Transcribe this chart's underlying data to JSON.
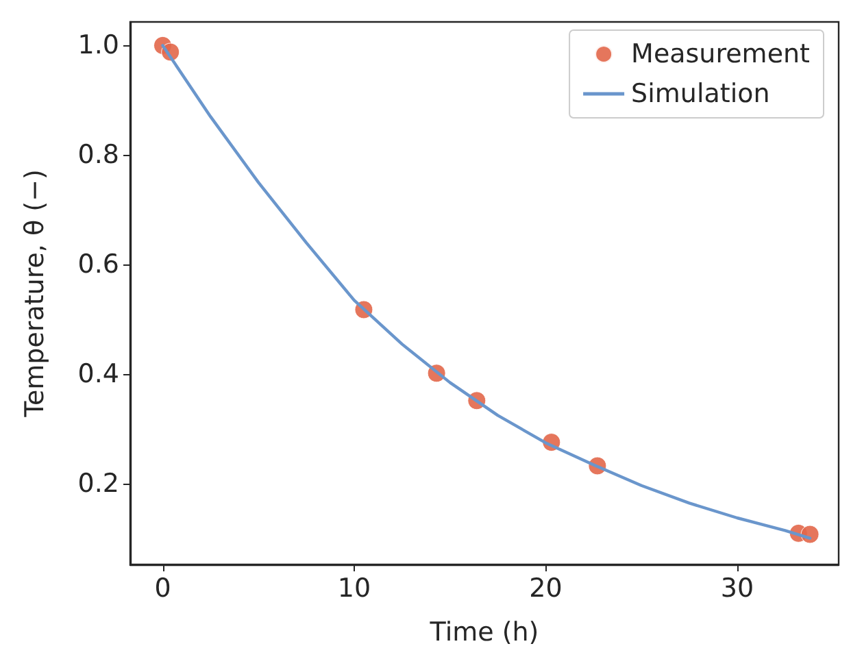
{
  "chart_data": {
    "type": "scatter",
    "xlabel": "Time (h)",
    "ylabel": "Temperature, θ (−)",
    "xlim": [
      -1.7,
      35.3
    ],
    "xticks": [
      0,
      10,
      20,
      30
    ],
    "ylim": [
      0.053,
      1.043
    ],
    "yticks": [
      {
        "value": 0.2,
        "label": "0.2"
      },
      {
        "value": 0.4,
        "label": "0.4"
      },
      {
        "value": 0.6,
        "label": "0.6"
      },
      {
        "value": 0.8,
        "label": "0.8"
      },
      {
        "value": 1,
        "label": "1.0"
      }
    ],
    "grid": false,
    "legend": "top right",
    "series": [
      {
        "name": "Measurement",
        "marker": "circle",
        "color": "#e2674a",
        "x": [
          0,
          0.4,
          10.5,
          14.3,
          16.4,
          20.3,
          22.7,
          33.2,
          33.8
        ],
        "values": [
          1.0,
          0.988,
          0.518,
          0.402,
          0.352,
          0.276,
          0.233,
          0.11,
          0.108
        ]
      },
      {
        "name": "Simulation",
        "type": "line",
        "marker": "none",
        "line_style": "solid",
        "color": "#6a96cc",
        "x": [
          0,
          2.5,
          5,
          7.5,
          10,
          12.5,
          15,
          17.5,
          20,
          22.5,
          25,
          27.5,
          30,
          32.5,
          33.8
        ],
        "values": [
          1.0,
          0.87,
          0.75,
          0.64,
          0.535,
          0.455,
          0.385,
          0.325,
          0.275,
          0.235,
          0.197,
          0.165,
          0.138,
          0.115,
          0.101
        ]
      }
    ]
  }
}
